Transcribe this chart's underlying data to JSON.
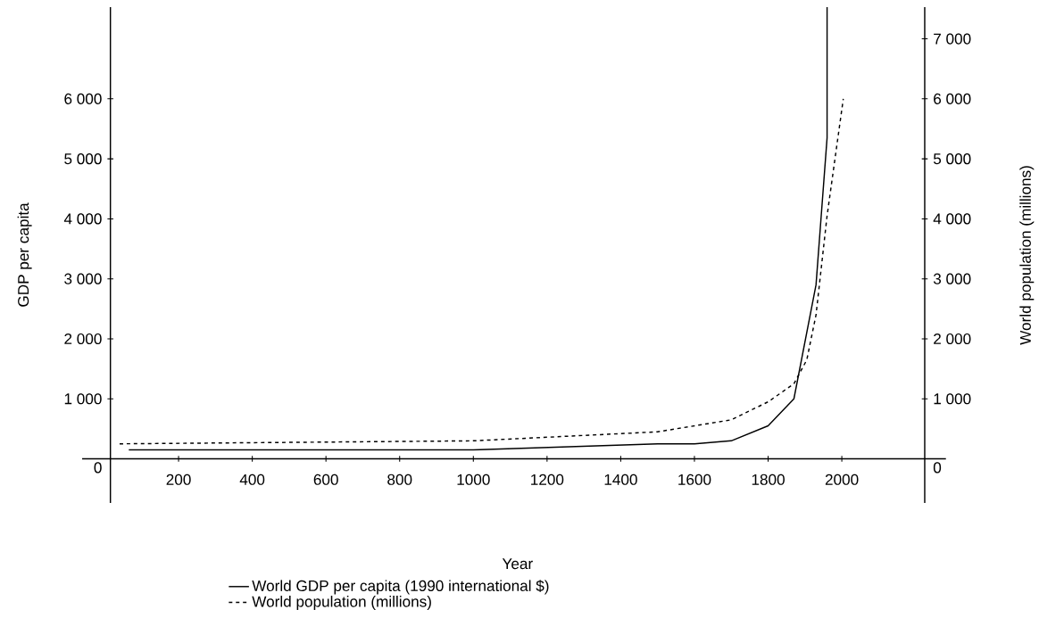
{
  "chart_data": {
    "type": "line",
    "xlabel": "Year",
    "ylabel": "GDP per capita",
    "y2label": "World population (millions)",
    "xlim": [
      15,
      2225
    ],
    "ylim": [
      -735,
      7530
    ],
    "y2lim": [
      -735,
      7530
    ],
    "xticks": [
      200,
      400,
      600,
      800,
      1000,
      1200,
      1400,
      1600,
      1800,
      2000
    ],
    "yticks": [
      0,
      {
        "value": 1000,
        "label": "1 000"
      },
      {
        "value": 2000,
        "label": "2 000"
      },
      {
        "value": 3000,
        "label": "3 000"
      },
      {
        "value": 4000,
        "label": "4 000"
      },
      {
        "value": 5000,
        "label": "5 000"
      },
      {
        "value": 6000,
        "label": "6 000"
      }
    ],
    "y2ticks": [
      0,
      {
        "value": 1000,
        "label": "1 000"
      },
      {
        "value": 2000,
        "label": "2 000"
      },
      {
        "value": 3000,
        "label": "3 000"
      },
      {
        "value": 4000,
        "label": "4 000"
      },
      {
        "value": 5000,
        "label": "5 000"
      },
      {
        "value": 6000,
        "label": "6 000"
      },
      {
        "value": 7000,
        "label": "7 000"
      }
    ],
    "legend": "bottom",
    "series": [
      {
        "name": "World GDP per capita (1990 international $)",
        "color": "#000000",
        "line_style": "solid",
        "x": [
          65,
          1000,
          1500,
          1600,
          1700,
          1800,
          1870,
          1930,
          1960,
          1960
        ],
        "values": [
          150,
          150,
          250,
          250,
          300,
          550,
          1000,
          2900,
          5350,
          7530
        ]
      },
      {
        "name": "World population (millions)",
        "color": "#000000",
        "line_style": "dashed",
        "axis": "y2",
        "x": [
          40,
          1000,
          1500,
          1600,
          1700,
          1800,
          1870,
          1905,
          1930,
          1960,
          2004
        ],
        "values": [
          250,
          300,
          450,
          550,
          650,
          950,
          1250,
          1650,
          2400,
          4050,
          6000
        ]
      }
    ]
  }
}
